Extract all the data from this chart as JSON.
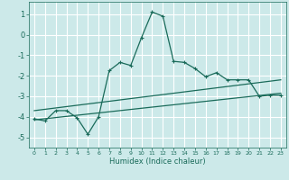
{
  "xlabel": "Humidex (Indice chaleur)",
  "bg_color": "#cce9e9",
  "grid_color": "#ffffff",
  "line_color": "#1a6b5a",
  "xlim": [
    -0.5,
    23.5
  ],
  "ylim": [
    -5.5,
    1.6
  ],
  "yticks": [
    1,
    0,
    -1,
    -2,
    -3,
    -4,
    -5
  ],
  "xticks": [
    0,
    1,
    2,
    3,
    4,
    5,
    6,
    7,
    8,
    9,
    10,
    11,
    12,
    13,
    14,
    15,
    16,
    17,
    18,
    19,
    20,
    21,
    22,
    23
  ],
  "main_x": [
    0,
    1,
    2,
    3,
    4,
    5,
    6,
    7,
    8,
    9,
    10,
    11,
    12,
    13,
    14,
    15,
    16,
    17,
    18,
    19,
    20,
    21,
    22,
    23
  ],
  "main_y": [
    -4.1,
    -4.2,
    -3.7,
    -3.7,
    -4.05,
    -4.85,
    -4.0,
    -1.75,
    -1.35,
    -1.5,
    -0.15,
    1.1,
    0.9,
    -1.3,
    -1.35,
    -1.65,
    -2.05,
    -1.85,
    -2.2,
    -2.2,
    -2.2,
    -3.0,
    -2.95,
    -2.95
  ],
  "trend1_x": [
    0,
    23
  ],
  "trend1_y": [
    -3.7,
    -2.2
  ],
  "trend2_x": [
    0,
    23
  ],
  "trend2_y": [
    -4.15,
    -2.85
  ]
}
